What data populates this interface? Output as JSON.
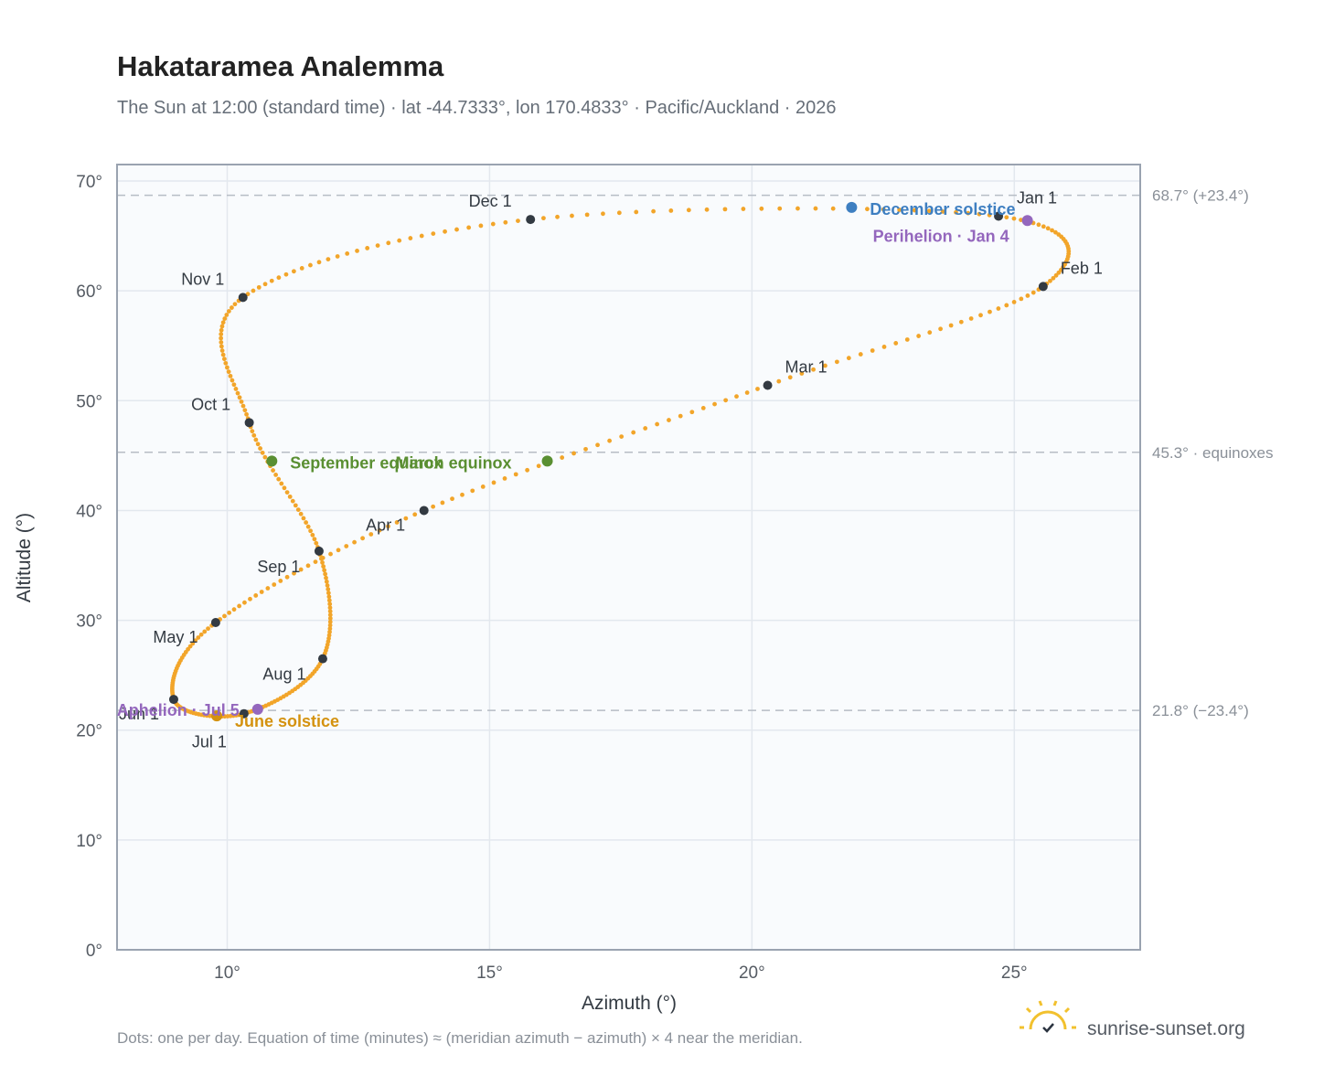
{
  "header": {
    "title": "Hakataramea Analemma",
    "subtitle": "The Sun at 12:00 (standard time) · lat -44.7333°, lon 170.4833° · Pacific/Auckland · 2026"
  },
  "footer": {
    "note": "Dots: one per day. Equation of time (minutes) ≈ (meridian azimuth − azimuth) × 4 near the meridian.",
    "brand": "sunrise-sunset.org"
  },
  "colors": {
    "path": "#f2a52a",
    "month_marker": "#333a42",
    "equinox": "#5a8f32",
    "june_solstice": "#d4920f",
    "december_solstice": "#3e7fc1",
    "apsis": "#9467bd",
    "grid": "#e3e8ee",
    "plot_bg": "#f9fbfd",
    "frame": "#9aa3b0",
    "ref_line": "#b7bdc5",
    "brand_icon": "#f2c12e"
  },
  "chart_data": {
    "type": "scatter",
    "xlabel": "Azimuth (°)",
    "ylabel": "Altitude (°)",
    "xlim": [
      7.9,
      27.4
    ],
    "ylim": [
      0,
      71.5
    ],
    "xticks": [
      10,
      15,
      20,
      25
    ],
    "xtick_labels": [
      "10°",
      "15°",
      "20°",
      "25°"
    ],
    "yticks": [
      0,
      10,
      20,
      30,
      40,
      50,
      60,
      70
    ],
    "ytick_labels": [
      "0°",
      "10°",
      "20°",
      "30°",
      "40°",
      "50°",
      "60°",
      "70°"
    ],
    "grid": true,
    "series": [
      {
        "marker": "one dot per day",
        "points_by_month": [
          {
            "month": "Jan 1",
            "x": 24.7,
            "y": 66.8
          },
          {
            "month": "Feb 1",
            "x": 25.55,
            "y": 60.4
          },
          {
            "month": "Mar 1",
            "x": 20.3,
            "y": 51.4
          },
          {
            "month": "Apr 1",
            "x": 13.75,
            "y": 40.0
          },
          {
            "month": "May 1",
            "x": 9.78,
            "y": 29.8
          },
          {
            "month": "Jun 1",
            "x": 8.98,
            "y": 22.8
          },
          {
            "month": "Jul 1",
            "x": 10.32,
            "y": 21.5
          },
          {
            "month": "Aug 1",
            "x": 11.82,
            "y": 26.5
          },
          {
            "month": "Sep 1",
            "x": 11.75,
            "y": 36.3
          },
          {
            "month": "Oct 1",
            "x": 10.42,
            "y": 48.0
          },
          {
            "month": "Nov 1",
            "x": 10.3,
            "y": 59.4
          },
          {
            "month": "Dec 1",
            "x": 15.78,
            "y": 66.5
          },
          {
            "month": "Dec 31",
            "x": 24.7,
            "y": 66.8
          }
        ]
      }
    ],
    "month_markers": [
      {
        "label": "Jan 1",
        "x": 24.7,
        "y": 66.8
      },
      {
        "label": "Feb 1",
        "x": 25.55,
        "y": 60.4
      },
      {
        "label": "Mar 1",
        "x": 20.3,
        "y": 51.4
      },
      {
        "label": "Apr 1",
        "x": 13.75,
        "y": 40.0
      },
      {
        "label": "May 1",
        "x": 9.78,
        "y": 29.8
      },
      {
        "label": "Jun 1",
        "x": 8.98,
        "y": 22.8
      },
      {
        "label": "Jul 1",
        "x": 10.32,
        "y": 21.5
      },
      {
        "label": "Aug 1",
        "x": 11.82,
        "y": 26.5
      },
      {
        "label": "Sep 1",
        "x": 11.75,
        "y": 36.3
      },
      {
        "label": "Oct 1",
        "x": 10.42,
        "y": 48.0
      },
      {
        "label": "Nov 1",
        "x": 10.3,
        "y": 59.4
      },
      {
        "label": "Dec 1",
        "x": 15.78,
        "y": 66.5
      }
    ],
    "events": [
      {
        "label": "March equinox",
        "x": 16.1,
        "y": 44.5,
        "kind": "equinox"
      },
      {
        "label": "September equinox",
        "x": 10.85,
        "y": 44.5,
        "kind": "equinox"
      },
      {
        "label": "June solstice",
        "x": 9.8,
        "y": 21.3,
        "kind": "june_solstice"
      },
      {
        "label": "December solstice",
        "x": 21.9,
        "y": 67.6,
        "kind": "december_solstice"
      },
      {
        "label": "Perihelion · Jan 4",
        "x": 25.25,
        "y": 66.4,
        "kind": "apsis"
      },
      {
        "label": "Aphelion · Jul 5",
        "x": 10.58,
        "y": 21.9,
        "kind": "apsis"
      }
    ],
    "reference_lines": [
      {
        "y": 68.7,
        "label": "68.7° (+23.4°)"
      },
      {
        "y": 45.3,
        "label": "45.3° · equinoxes"
      },
      {
        "y": 21.8,
        "label": "21.8° (−23.4°)"
      }
    ]
  }
}
